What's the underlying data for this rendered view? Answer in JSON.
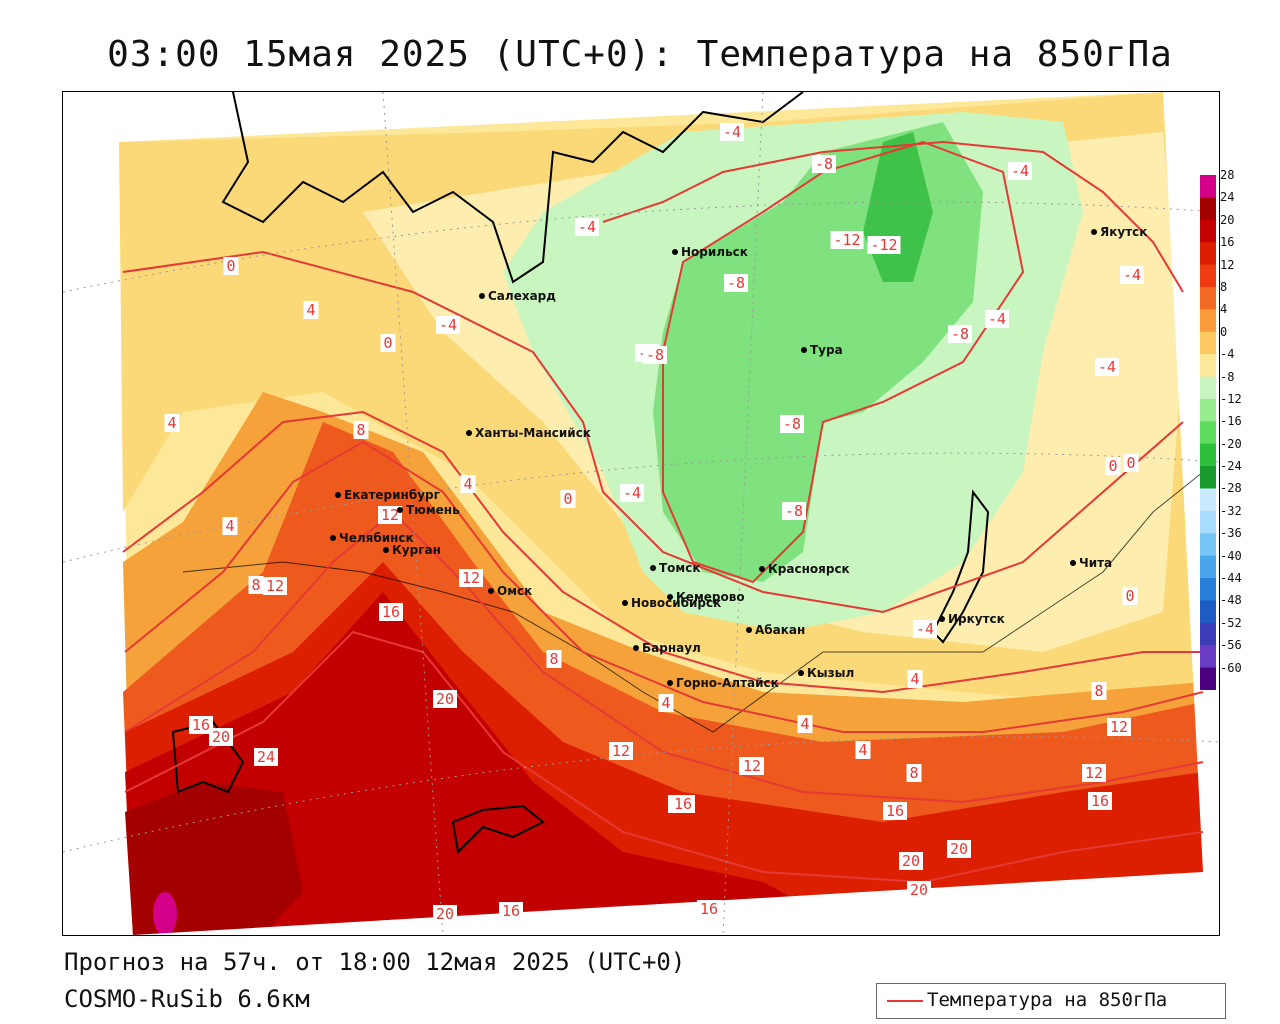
{
  "title": "03:00 15мая 2025 (UTC+0): Температура на 850гПа",
  "footer": {
    "forecast": "Прогноз на 57ч. от 18:00 12мая 2025 (UTC+0)",
    "model": "COSMO-RuSib 6.6км"
  },
  "legend": {
    "label": "Температура на 850гПа",
    "line_color": "#e53935"
  },
  "colorbar": {
    "ticks": [
      "28",
      "24",
      "20",
      "16",
      "12",
      "8",
      "4",
      "0",
      "-4",
      "-8",
      "-12",
      "-16",
      "-20",
      "-24",
      "-28",
      "-32",
      "-36",
      "-40",
      "-44",
      "-48",
      "-52",
      "-56",
      "-60"
    ],
    "colors": [
      "#d4008a",
      "#a50000",
      "#c40000",
      "#dc1f00",
      "#ee3c10",
      "#f56a22",
      "#fa9a3a",
      "#fcc860",
      "#fde89a",
      "#c8f5c0",
      "#98ec90",
      "#5edc5e",
      "#2ebf3a",
      "#189a2c",
      "#c8eaff",
      "#a8dcff",
      "#78c6f8",
      "#4aa6ec",
      "#2680d8",
      "#1c5cc4",
      "#3c3cb8",
      "#6a3cc4",
      "#4b0082"
    ]
  },
  "cities": [
    {
      "name": "Норильск"
    },
    {
      "name": "Салехард"
    },
    {
      "name": "Тура"
    },
    {
      "name": "Якутск"
    },
    {
      "name": "Ханты-Мансийск"
    },
    {
      "name": "Екатеринбург"
    },
    {
      "name": "Тюмень"
    },
    {
      "name": "Челябинск"
    },
    {
      "name": "Курган"
    },
    {
      "name": "Омск"
    },
    {
      "name": "Новосибирск"
    },
    {
      "name": "Томск"
    },
    {
      "name": "Кемерово"
    },
    {
      "name": "Красноярск"
    },
    {
      "name": "Абакан"
    },
    {
      "name": "Барнаул"
    },
    {
      "name": "Горно-Алтайск"
    },
    {
      "name": "Кызыл"
    },
    {
      "name": "Иркутск"
    },
    {
      "name": "Чита"
    }
  ],
  "contour_labels": [
    {
      "text": "-4"
    },
    {
      "text": "-8"
    },
    {
      "text": "-4"
    },
    {
      "text": "-12"
    },
    {
      "text": "-12"
    },
    {
      "text": "-4"
    },
    {
      "text": "-8"
    },
    {
      "text": "-4"
    },
    {
      "text": "-4"
    },
    {
      "text": "-8"
    },
    {
      "text": "-4"
    },
    {
      "text": "-4"
    },
    {
      "text": "-8"
    },
    {
      "text": "-8"
    },
    {
      "text": "-8"
    },
    {
      "text": "-4"
    },
    {
      "text": "-8"
    },
    {
      "text": "0"
    },
    {
      "text": "4"
    },
    {
      "text": "0"
    },
    {
      "text": "4"
    },
    {
      "text": "8"
    },
    {
      "text": "0"
    },
    {
      "text": "4"
    },
    {
      "text": "0"
    },
    {
      "text": "4"
    },
    {
      "text": "12"
    },
    {
      "text": "12"
    },
    {
      "text": "8"
    },
    {
      "text": "16"
    },
    {
      "text": "12"
    },
    {
      "text": "8"
    },
    {
      "text": "20"
    },
    {
      "text": "4"
    },
    {
      "text": "16"
    },
    {
      "text": "20"
    },
    {
      "text": "24"
    },
    {
      "text": "12"
    },
    {
      "text": "16"
    },
    {
      "text": "12"
    },
    {
      "text": "4"
    },
    {
      "text": "12"
    },
    {
      "text": "8"
    },
    {
      "text": "12"
    },
    {
      "text": "16"
    },
    {
      "text": "16"
    },
    {
      "text": "20"
    },
    {
      "text": "20"
    },
    {
      "text": "20"
    },
    {
      "text": "20"
    },
    {
      "text": "16"
    },
    {
      "text": "16"
    },
    {
      "text": "4"
    },
    {
      "text": "8"
    },
    {
      "text": "12"
    },
    {
      "text": "16"
    },
    {
      "text": "0"
    },
    {
      "text": "4"
    },
    {
      "text": "0"
    },
    {
      "text": "-4"
    }
  ]
}
